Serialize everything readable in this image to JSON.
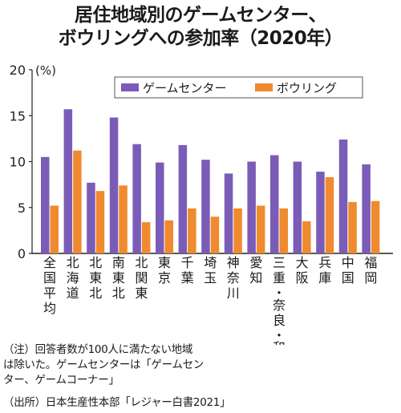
{
  "title_line1": "居住地域別のゲームセンター、",
  "title_line2": "ボウリングへの参加率（2020年）",
  "note_lines": [
    "（注）回答者数が100人に満たない地域",
    "は除いた。ゲームセンターは「ゲームセン",
    "ター、ゲームコーナー」"
  ],
  "source": "（出所）日本生産性本部「レジャー白書2021」",
  "chart_data": {
    "type": "bar",
    "unit_label": "(%)",
    "ylim": [
      0,
      20
    ],
    "yticks": [
      0,
      5,
      10,
      15,
      20
    ],
    "grid": false,
    "legend_position": "top-right",
    "categories": [
      "全国平均",
      "北海道",
      "北東北",
      "南東北",
      "北関東",
      "東京",
      "千葉",
      "埼玉",
      "神奈川",
      "愛知",
      "三重・奈良・和歌山",
      "大阪",
      "兵庫",
      "中国",
      "福岡"
    ],
    "series": [
      {
        "name": "ゲームセンター",
        "color": "#7a5cb8",
        "values": [
          10.5,
          15.7,
          7.7,
          14.8,
          11.9,
          9.9,
          11.8,
          10.2,
          8.7,
          10.0,
          10.7,
          10.0,
          8.9,
          12.4,
          9.7
        ]
      },
      {
        "name": "ボウリング",
        "color": "#f08a2e",
        "values": [
          5.2,
          11.2,
          6.8,
          7.4,
          3.4,
          3.6,
          4.9,
          4.0,
          4.9,
          5.2,
          4.9,
          3.5,
          8.3,
          5.6,
          5.7
        ]
      }
    ]
  }
}
